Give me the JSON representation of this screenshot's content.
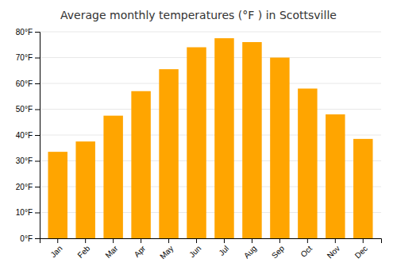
{
  "chart_data": {
    "type": "bar",
    "title": "Average monthly temperatures (°F ) in Scottsville",
    "categories": [
      "Jan",
      "Feb",
      "Mar",
      "Apr",
      "May",
      "Jun",
      "Jul",
      "Aug",
      "Sep",
      "Oct",
      "Nov",
      "Dec"
    ],
    "values": [
      33.5,
      37.5,
      47.5,
      57.0,
      65.5,
      74.0,
      77.5,
      76.0,
      70.0,
      58.0,
      48.0,
      38.5
    ],
    "color": "#FFA500",
    "ylim": [
      0,
      80
    ],
    "yticks": [
      {
        "value": 0,
        "label": "0°F"
      },
      {
        "value": 10,
        "label": "10°F"
      },
      {
        "value": 20,
        "label": "20°F"
      },
      {
        "value": 30,
        "label": "30°F"
      },
      {
        "value": 40,
        "label": "40°F"
      },
      {
        "value": 50,
        "label": "50°F"
      },
      {
        "value": 60,
        "label": "60°F"
      },
      {
        "value": 70,
        "label": "70°F"
      },
      {
        "value": 80,
        "label": "80°F"
      }
    ],
    "grid": true
  }
}
